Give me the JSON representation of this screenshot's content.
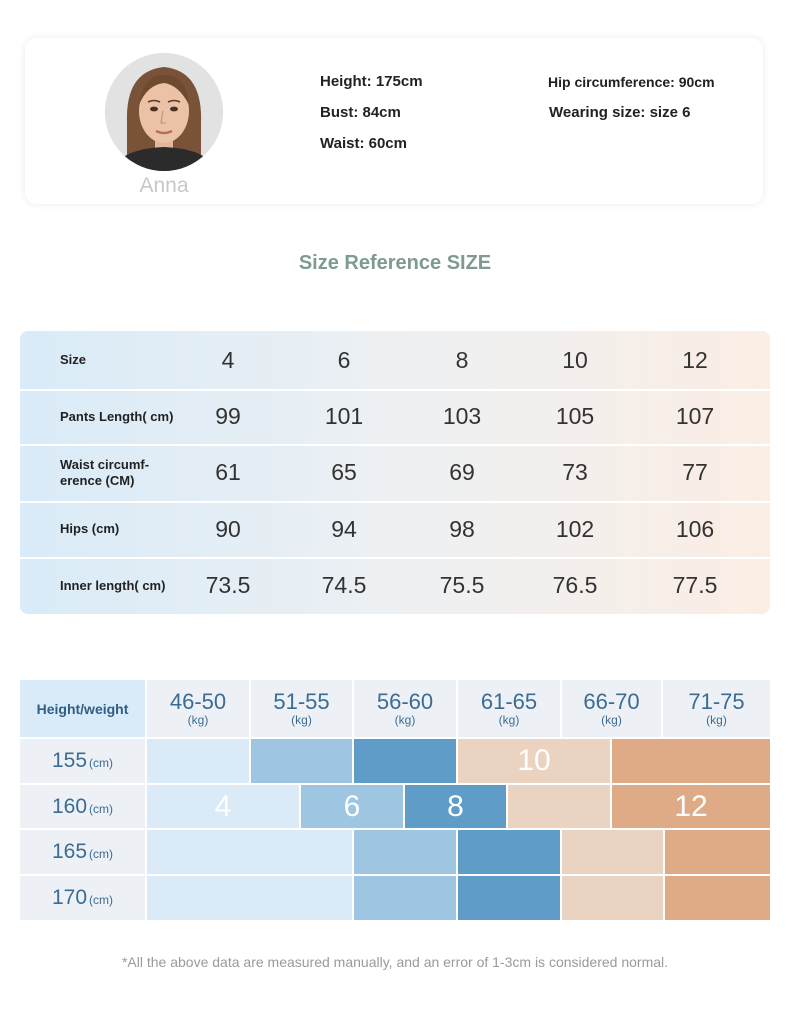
{
  "model": {
    "name": "Anna",
    "stats": {
      "height": "Height: 175cm",
      "bust": "Bust: 84cm",
      "waist": "Waist: 60cm",
      "hip": "Hip circumference: 90cm",
      "wearing": "Wearing size: size 6"
    }
  },
  "size_reference": {
    "title": "Size Reference SIZE",
    "rows": [
      {
        "label": "Size",
        "values": [
          "4",
          "6",
          "8",
          "10",
          "12"
        ]
      },
      {
        "label": "Pants Length( cm)",
        "values": [
          "99",
          "101",
          "103",
          "105",
          "107"
        ]
      },
      {
        "label": "Waist circumf- erence (CM)",
        "values": [
          "61",
          "65",
          "69",
          "73",
          "77"
        ]
      },
      {
        "label": "Hips (cm)",
        "values": [
          "90",
          "94",
          "98",
          "102",
          "106"
        ]
      },
      {
        "label": "Inner length( cm)",
        "values": [
          "73.5",
          "74.5",
          "75.5",
          "76.5",
          "77.5"
        ]
      }
    ]
  },
  "height_weight": {
    "corner_label": "Height/weight",
    "weight_unit": "(kg)",
    "weights": [
      "46-50",
      "51-55",
      "56-60",
      "61-65",
      "66-70",
      "71-75"
    ],
    "height_unit": "(cm)",
    "heights": [
      "155",
      "160",
      "165",
      "170"
    ],
    "size_labels": [
      "4",
      "6",
      "8",
      "10",
      "12"
    ],
    "colors": {
      "size4": "#dbeaf7",
      "size6": "#9ec5e2",
      "size8": "#5f9cc8",
      "size10": "#ebd3c2",
      "size12": "#dfab86",
      "header_bg": "#edf1f5",
      "corner_bg": "#d9eaf8"
    }
  },
  "footnote": "*All the above data are measured manually, and an error of 1-3cm is considered normal."
}
